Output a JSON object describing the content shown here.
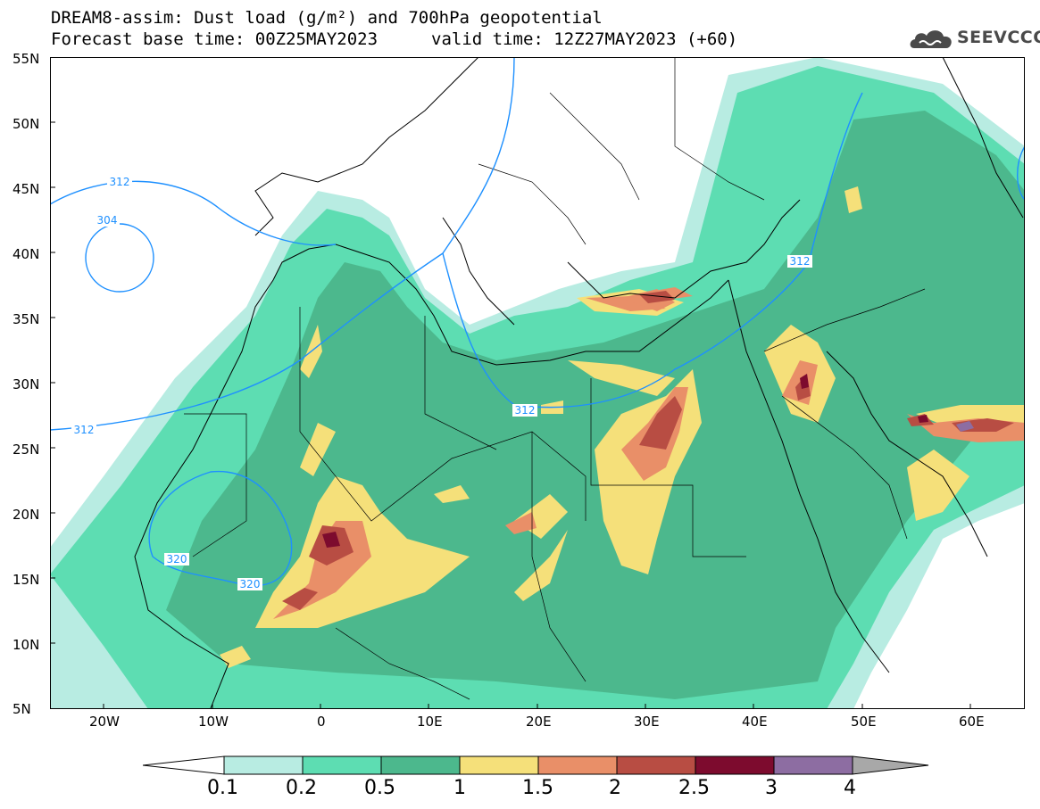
{
  "title": {
    "line1": "DREAM8-assim: Dust load (g/m²) and 700hPa geopotential",
    "line2": "Forecast base time: 00Z25MAY2023",
    "line2_valid": "valid time: 12Z27MAY2023 (+60)"
  },
  "logo": {
    "icon": "cloud-icon",
    "text": "SEEVCCC"
  },
  "axes": {
    "lat_labels": [
      "55N",
      "50N",
      "45N",
      "40N",
      "35N",
      "30N",
      "25N",
      "20N",
      "15N",
      "10N",
      "5N"
    ],
    "lon_labels": [
      "20W",
      "10W",
      "0",
      "10E",
      "20E",
      "30E",
      "40E",
      "50E",
      "60E"
    ]
  },
  "contours": {
    "labels": [
      "312",
      "304",
      "312",
      "312",
      "312",
      "320",
      "320"
    ]
  },
  "legend": {
    "labels": [
      "0.1",
      "0.2",
      "0.5",
      "1",
      "1.5",
      "2",
      "2.5",
      "3",
      "4"
    ],
    "colors": [
      "#b8ece2",
      "#5dddb2",
      "#4cb88d",
      "#f5e07a",
      "#e98f68",
      "#b84d43",
      "#7d0b2e",
      "#8d6da2"
    ],
    "under_color": "#ffffff",
    "over_color": "#a8a8a8"
  }
}
